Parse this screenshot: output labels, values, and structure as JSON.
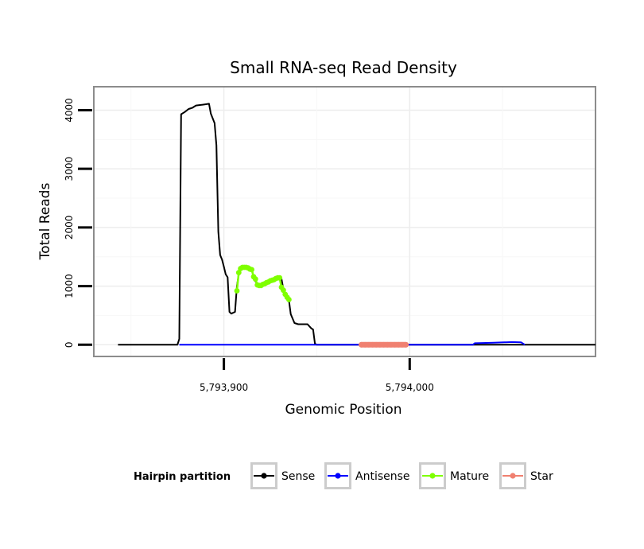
{
  "chart_data": {
    "type": "line",
    "title": "Small RNA-seq Read Density",
    "xlabel": "Genomic Position",
    "ylabel": "Total Reads",
    "xlim": [
      5793830,
      5794100
    ],
    "ylim": [
      -200,
      4400
    ],
    "x_ticks": [
      5793900,
      5794000
    ],
    "x_tick_labels": [
      "5,793,900",
      "5,794,000"
    ],
    "y_ticks": [
      0,
      1000,
      2000,
      3000,
      4000
    ],
    "y_tick_labels": [
      "0",
      "1000",
      "2000",
      "3000",
      "4000"
    ],
    "grid": true,
    "legend": {
      "title": "Hairpin partition",
      "position": "bottom",
      "entries": [
        {
          "label": "Sense",
          "color": "#000000"
        },
        {
          "label": "Antisense",
          "color": "#0000ff"
        },
        {
          "label": "Mature",
          "color": "#7fff00"
        },
        {
          "label": "Star",
          "color": "#f08070"
        }
      ]
    },
    "series": [
      {
        "name": "Sense",
        "color": "#000000",
        "points": [
          [
            5793843,
            0
          ],
          [
            5793875,
            0
          ],
          [
            5793876,
            100
          ],
          [
            5793877,
            3930
          ],
          [
            5793879,
            3970
          ],
          [
            5793881,
            4020
          ],
          [
            5793883,
            4040
          ],
          [
            5793885,
            4080
          ],
          [
            5793888,
            4090
          ],
          [
            5793890,
            4100
          ],
          [
            5793892,
            4110
          ],
          [
            5793893,
            3940
          ],
          [
            5793895,
            3780
          ],
          [
            5793896,
            3400
          ],
          [
            5793897,
            1930
          ],
          [
            5793898,
            1530
          ],
          [
            5793899,
            1450
          ],
          [
            5793900,
            1330
          ],
          [
            5793901,
            1200
          ],
          [
            5793902,
            1150
          ],
          [
            5793903,
            560
          ],
          [
            5793904,
            530
          ],
          [
            5793906,
            560
          ],
          [
            5793907,
            1000
          ],
          [
            5793908,
            1200
          ],
          [
            5793909,
            1310
          ],
          [
            5793911,
            1320
          ],
          [
            5793913,
            1310
          ],
          [
            5793915,
            1290
          ],
          [
            5793916,
            1150
          ],
          [
            5793917,
            1080
          ],
          [
            5793919,
            1010
          ],
          [
            5793921,
            1030
          ],
          [
            5793923,
            1060
          ],
          [
            5793925,
            1090
          ],
          [
            5793927,
            1110
          ],
          [
            5793929,
            1140
          ],
          [
            5793931,
            1130
          ],
          [
            5793932,
            950
          ],
          [
            5793933,
            860
          ],
          [
            5793935,
            760
          ],
          [
            5793936,
            520
          ],
          [
            5793938,
            370
          ],
          [
            5793940,
            350
          ],
          [
            5793945,
            350
          ],
          [
            5793947,
            280
          ],
          [
            5793948,
            260
          ],
          [
            5793949,
            20
          ],
          [
            5793950,
            0
          ],
          [
            5794100,
            0
          ]
        ]
      },
      {
        "name": "Antisense",
        "color": "#0000ff",
        "points": [
          [
            5793876,
            0
          ],
          [
            5793950,
            0
          ],
          [
            5794034,
            0
          ],
          [
            5794035,
            25
          ],
          [
            5794045,
            35
          ],
          [
            5794055,
            45
          ],
          [
            5794060,
            40
          ],
          [
            5794062,
            0
          ]
        ]
      },
      {
        "name": "Mature",
        "color": "#7fff00",
        "points": [
          [
            5793907,
            920
          ],
          [
            5793908,
            1230
          ],
          [
            5793909,
            1300
          ],
          [
            5793910,
            1320
          ],
          [
            5793911,
            1320
          ],
          [
            5793912,
            1320
          ],
          [
            5793913,
            1310
          ],
          [
            5793914,
            1290
          ],
          [
            5793915,
            1280
          ],
          [
            5793916,
            1160
          ],
          [
            5793917,
            1120
          ],
          [
            5793918,
            1020
          ],
          [
            5793919,
            1010
          ],
          [
            5793920,
            1010
          ],
          [
            5793921,
            1030
          ],
          [
            5793922,
            1040
          ],
          [
            5793923,
            1060
          ],
          [
            5793924,
            1070
          ],
          [
            5793925,
            1090
          ],
          [
            5793926,
            1100
          ],
          [
            5793927,
            1110
          ],
          [
            5793928,
            1130
          ],
          [
            5793929,
            1140
          ],
          [
            5793930,
            1140
          ],
          [
            5793931,
            980
          ],
          [
            5793932,
            930
          ],
          [
            5793933,
            860
          ],
          [
            5793934,
            810
          ],
          [
            5793935,
            770
          ]
        ]
      },
      {
        "name": "Star",
        "color": "#f08070",
        "points": [
          [
            5793974,
            0
          ],
          [
            5793976,
            0
          ],
          [
            5793978,
            0
          ],
          [
            5793980,
            0
          ],
          [
            5793982,
            0
          ],
          [
            5793984,
            0
          ],
          [
            5793986,
            0
          ],
          [
            5793988,
            0
          ],
          [
            5793990,
            0
          ],
          [
            5793992,
            0
          ],
          [
            5793994,
            0
          ],
          [
            5793996,
            0
          ],
          [
            5793998,
            0
          ]
        ]
      }
    ]
  }
}
